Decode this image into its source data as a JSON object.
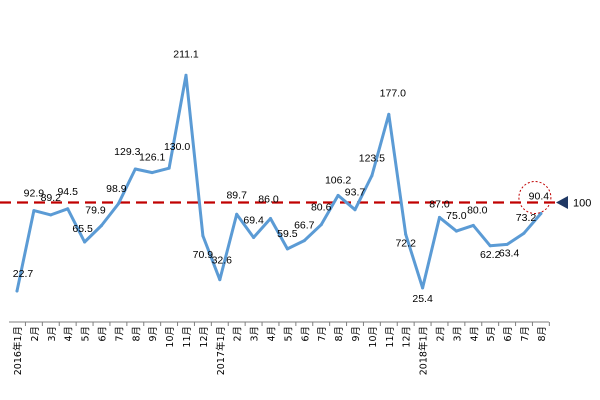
{
  "chart_data": {
    "type": "line",
    "categories": [
      "2016年1月",
      "2月",
      "3月",
      "4月",
      "5月",
      "6月",
      "7月",
      "8月",
      "9月",
      "10月",
      "11月",
      "12月",
      "2017年1月",
      "2月",
      "3月",
      "4月",
      "5月",
      "6月",
      "7月",
      "8月",
      "9月",
      "10月",
      "11月",
      "12月",
      "2018年1月",
      "2月",
      "3月",
      "4月",
      "5月",
      "6月",
      "7月",
      "8月"
    ],
    "values": [
      22.7,
      92.9,
      89.2,
      94.5,
      65.5,
      79.9,
      98.9,
      129.3,
      126.1,
      130.0,
      211.1,
      70.9,
      32.6,
      89.7,
      69.4,
      86.0,
      59.5,
      66.7,
      80.6,
      106.2,
      93.7,
      123.5,
      177.0,
      72.2,
      25.4,
      87.0,
      75.0,
      80.0,
      62.2,
      63.4,
      73.2,
      90.4
    ],
    "value_labels": [
      "22.7",
      "92.9",
      "89.2",
      "94.5",
      "65.5",
      "79.9",
      "98.9",
      "129.3",
      "126.1",
      "130.0",
      "211.1",
      "70.9",
      "32.6",
      "89.7",
      "69.4",
      "86.0",
      "59.5",
      "66.7",
      "80.6",
      "106.2",
      "93.7",
      "123.5",
      "177.0",
      "72.2",
      "25.4",
      "87.0",
      "75.0",
      "80.0",
      "62.2",
      "63.4",
      "73.2",
      "90.4"
    ],
    "ylim": [
      0,
      230
    ],
    "reference_line": {
      "value": 100,
      "label": "100",
      "color": "#c00000",
      "style": "dashed"
    },
    "highlight_index": 31,
    "series_color": "#5b9bd5",
    "grid": false,
    "legend": false
  }
}
